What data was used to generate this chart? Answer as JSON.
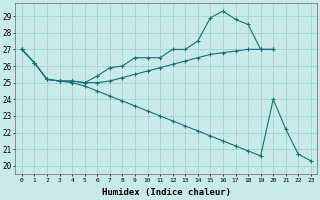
{
  "xlabel": "Humidex (Indice chaleur)",
  "bg_color": "#c8eaea",
  "grid_color": "#a0cccc",
  "line_color": "#1a7070",
  "xlim": [
    -0.5,
    23.5
  ],
  "ylim": [
    19.5,
    29.8
  ],
  "xticks": [
    0,
    1,
    2,
    3,
    4,
    5,
    6,
    7,
    8,
    9,
    10,
    11,
    12,
    13,
    14,
    15,
    16,
    17,
    18,
    19,
    20,
    21,
    22,
    23
  ],
  "yticks": [
    20,
    21,
    22,
    23,
    24,
    25,
    26,
    27,
    28,
    29
  ],
  "series": [
    {
      "x": [
        0,
        1,
        2,
        3,
        4,
        5,
        6,
        7,
        8,
        9,
        10,
        11,
        12,
        13,
        14,
        15,
        16,
        17,
        18,
        19,
        20
      ],
      "y": [
        27.0,
        26.2,
        25.2,
        25.1,
        25.1,
        25.0,
        25.4,
        25.9,
        26.0,
        26.5,
        26.5,
        26.5,
        27.0,
        27.0,
        27.5,
        28.9,
        29.3,
        28.8,
        28.5,
        27.0,
        27.0
      ]
    },
    {
      "x": [
        0,
        1,
        2,
        3,
        4,
        5,
        6,
        7,
        8,
        9,
        10,
        11,
        12,
        13,
        14,
        15,
        16,
        17,
        18,
        19,
        20
      ],
      "y": [
        27.0,
        26.2,
        25.2,
        25.1,
        25.1,
        25.0,
        25.0,
        25.1,
        25.3,
        25.5,
        25.7,
        25.9,
        26.1,
        26.3,
        26.5,
        26.7,
        26.8,
        26.9,
        27.0,
        27.0,
        27.0
      ]
    },
    {
      "x": [
        0,
        1,
        2,
        3,
        4,
        5,
        6,
        7,
        8,
        9,
        10,
        11,
        12,
        13,
        14,
        15,
        16,
        17,
        18,
        19,
        20,
        21,
        22,
        23
      ],
      "y": [
        27.0,
        26.2,
        25.2,
        25.1,
        25.0,
        24.8,
        24.5,
        24.2,
        23.9,
        23.6,
        23.3,
        23.0,
        22.7,
        22.4,
        22.1,
        21.8,
        21.5,
        21.2,
        20.9,
        20.6,
        24.0,
        22.2,
        20.7,
        20.3
      ]
    }
  ]
}
